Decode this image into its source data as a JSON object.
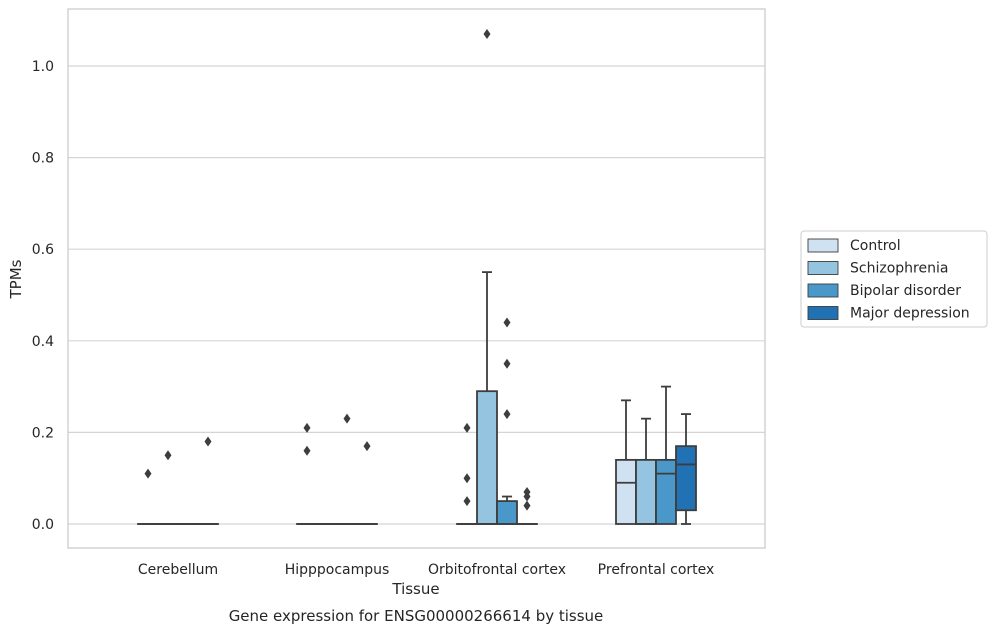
{
  "chart_data": {
    "type": "box",
    "title": "",
    "caption": "Gene expression for ENSG00000266614 by tissue",
    "xlabel": "Tissue",
    "ylabel": "TPMs",
    "ylim": [
      -0.05,
      1.13
    ],
    "yticks": [
      0.0,
      0.2,
      0.4,
      0.6,
      0.8,
      1.0
    ],
    "ytick_labels": [
      "0.0",
      "0.2",
      "0.4",
      "0.6",
      "0.8",
      "1.0"
    ],
    "grid": "horizontal",
    "legend_position": "right, outside plot",
    "categories": [
      "Cerebellum",
      "Hipppocampus",
      "Orbitofrontal cortex",
      "Prefrontal cortex"
    ],
    "series": [
      {
        "name": "Control",
        "color": "#d0e1f2",
        "boxes": [
          {
            "min": 0,
            "q1": 0,
            "median": 0,
            "q3": 0,
            "max": 0,
            "outliers": [
              0.11
            ]
          },
          {
            "min": 0,
            "q1": 0,
            "median": 0,
            "q3": 0,
            "max": 0,
            "outliers": [
              0.16,
              0.21
            ]
          },
          {
            "min": 0,
            "q1": 0,
            "median": 0,
            "q3": 0,
            "max": 0,
            "outliers": [
              0.05,
              0.1,
              0.21
            ]
          },
          {
            "min": 0,
            "q1": 0,
            "median": 0.09,
            "q3": 0.14,
            "max": 0.27,
            "outliers": []
          }
        ]
      },
      {
        "name": "Schizophrenia",
        "color": "#94c4df",
        "boxes": [
          {
            "min": 0,
            "q1": 0,
            "median": 0,
            "q3": 0,
            "max": 0,
            "outliers": [
              0.15
            ]
          },
          {
            "min": 0,
            "q1": 0,
            "median": 0,
            "q3": 0,
            "max": 0,
            "outliers": []
          },
          {
            "min": 0,
            "q1": 0,
            "median": 0,
            "q3": 0.29,
            "max": 0.55,
            "outliers": [
              1.07
            ]
          },
          {
            "min": 0,
            "q1": 0,
            "median": 0,
            "q3": 0.14,
            "max": 0.23,
            "outliers": []
          }
        ]
      },
      {
        "name": "Bipolar disorder",
        "color": "#4a98c9",
        "boxes": [
          {
            "min": 0,
            "q1": 0,
            "median": 0,
            "q3": 0,
            "max": 0,
            "outliers": []
          },
          {
            "min": 0,
            "q1": 0,
            "median": 0,
            "q3": 0,
            "max": 0,
            "outliers": [
              0.23
            ]
          },
          {
            "min": 0,
            "q1": 0,
            "median": 0,
            "q3": 0.05,
            "max": 0.06,
            "outliers": [
              0.24,
              0.35,
              0.44
            ]
          },
          {
            "min": 0,
            "q1": 0,
            "median": 0.11,
            "q3": 0.14,
            "max": 0.3,
            "outliers": []
          }
        ]
      },
      {
        "name": "Major depression",
        "color": "#2171b5",
        "boxes": [
          {
            "min": 0,
            "q1": 0,
            "median": 0,
            "q3": 0,
            "max": 0,
            "outliers": [
              0.18
            ]
          },
          {
            "min": 0,
            "q1": 0,
            "median": 0,
            "q3": 0,
            "max": 0,
            "outliers": [
              0.17
            ]
          },
          {
            "min": 0,
            "q1": 0,
            "median": 0,
            "q3": 0,
            "max": 0,
            "outliers": [
              0.04,
              0.06,
              0.07
            ]
          },
          {
            "min": 0,
            "q1": 0.03,
            "median": 0.13,
            "q3": 0.17,
            "max": 0.24,
            "outliers": []
          }
        ]
      }
    ]
  }
}
